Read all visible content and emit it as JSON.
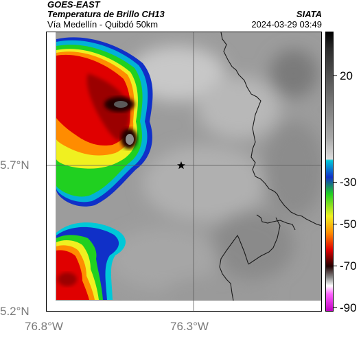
{
  "header": {
    "satellite": "GOES-EAST",
    "product": "Temperatura de Brillo CH13",
    "route": "Vía Medellín - Quibdó 50km",
    "org": "SIATA",
    "timestamp": "2024-03-29 03:49"
  },
  "axes": {
    "lat_labels": [
      "5.7°N",
      "5.2°N"
    ],
    "lon_labels": [
      "76.8°W",
      "76.3°W"
    ]
  },
  "colorbar": {
    "tick_labels": [
      "20",
      "-30",
      "-50",
      "-70",
      "-90"
    ],
    "colors": [
      "#000000",
      "#2b2b2b",
      "#6a6a6a",
      "#a9a9a9",
      "#dcdcdc",
      "#00c8d8",
      "#1030c8",
      "#20d020",
      "#f0f020",
      "#ff8c00",
      "#e00000",
      "#200000",
      "#8a8a8a",
      "#ff60ff",
      "#c000c0"
    ]
  },
  "map": {
    "marker": "star",
    "background_color": "#9c9c9c",
    "border_color": "#1a1a1a"
  }
}
